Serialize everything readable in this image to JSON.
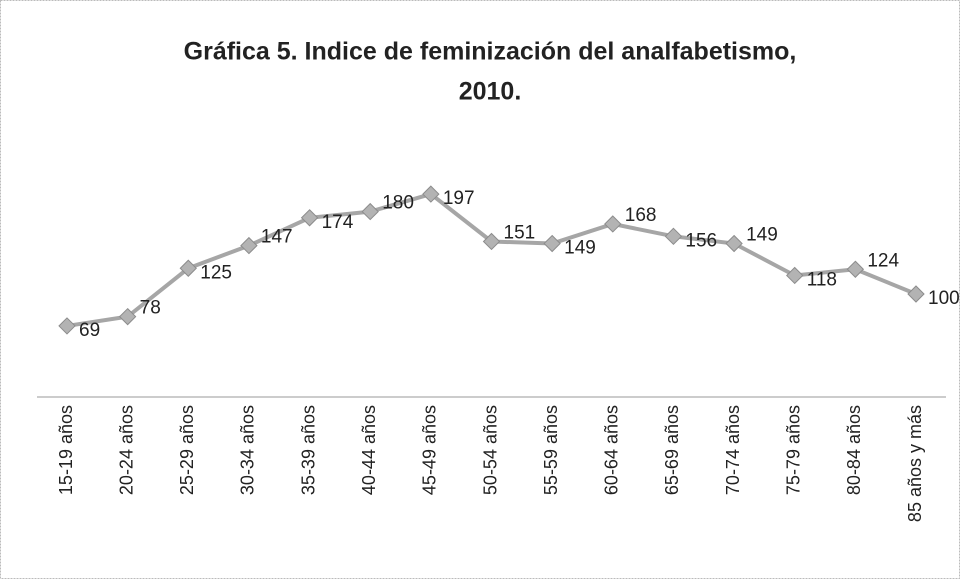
{
  "chart_data": {
    "type": "line",
    "title": [
      "Gráfica 5. Indice de feminización del analfabetismo,",
      "2010."
    ],
    "categories": [
      "15-19 años",
      "20-24 años",
      "25-29 años",
      "30-34 años",
      "35-39 años",
      "40-44 años",
      "45-49 años",
      "50-54 años",
      "55-59 años",
      "60-64 años",
      "65-69 años",
      "70-74 años",
      "75-79 años",
      "80-84 años",
      "85 años y más"
    ],
    "values": [
      69,
      78,
      125,
      147,
      174,
      180,
      197,
      151,
      149,
      168,
      156,
      149,
      118,
      124,
      100
    ],
    "color": "#a6a6a6",
    "ylim": [
      0,
      200
    ]
  }
}
